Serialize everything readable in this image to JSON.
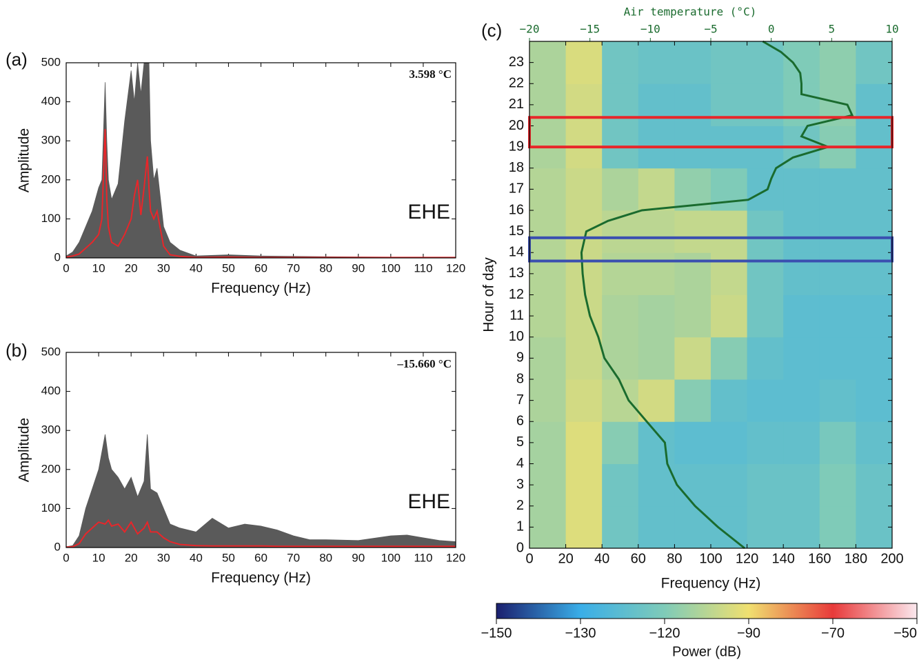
{
  "chart_data": [
    {
      "type": "line",
      "panel_label": "(a)",
      "annotation": "3.598 °C",
      "channel": "EHE",
      "xlabel": "Frequency (Hz)",
      "ylabel": "Amplitude",
      "xlim": [
        0,
        120
      ],
      "xticks": [
        0,
        10,
        20,
        30,
        40,
        50,
        60,
        70,
        80,
        90,
        100,
        110,
        120
      ],
      "ylim": [
        0,
        500
      ],
      "yticks": [
        0,
        100,
        200,
        300,
        400,
        500
      ],
      "x": [
        0,
        2,
        4,
        6,
        8,
        10,
        11,
        12,
        12.5,
        13,
        14,
        16,
        18,
        20,
        21,
        22,
        23,
        24,
        25,
        25.5,
        26,
        27,
        28,
        30,
        32,
        35,
        40,
        50,
        60,
        80,
        100,
        120
      ],
      "series": [
        {
          "color": "#5a5a5a",
          "fill": true,
          "values": [
            5,
            15,
            40,
            80,
            120,
            180,
            200,
            450,
            300,
            200,
            150,
            190,
            350,
            480,
            400,
            500,
            420,
            500,
            500,
            500,
            300,
            200,
            230,
            80,
            40,
            20,
            5,
            8,
            5,
            3,
            2,
            2
          ]
        },
        {
          "color": "#e8262a",
          "fill": false,
          "values": [
            2,
            5,
            10,
            25,
            40,
            60,
            100,
            330,
            150,
            80,
            40,
            30,
            60,
            100,
            160,
            200,
            110,
            180,
            260,
            180,
            120,
            100,
            120,
            30,
            8,
            4,
            1,
            2,
            1,
            1,
            1,
            1
          ]
        }
      ]
    },
    {
      "type": "line",
      "panel_label": "(b)",
      "annotation": "–15.660 °C",
      "channel": "EHE",
      "xlabel": "Frequency (Hz)",
      "ylabel": "Amplitude",
      "xlim": [
        0,
        120
      ],
      "xticks": [
        0,
        10,
        20,
        30,
        40,
        50,
        60,
        70,
        80,
        90,
        100,
        110,
        120
      ],
      "ylim": [
        0,
        500
      ],
      "yticks": [
        0,
        100,
        200,
        300,
        400,
        500
      ],
      "x": [
        0,
        2,
        4,
        6,
        8,
        10,
        12,
        13,
        14,
        16,
        18,
        20,
        22,
        24,
        25,
        26,
        28,
        30,
        32,
        35,
        40,
        45,
        50,
        55,
        60,
        65,
        70,
        75,
        80,
        90,
        100,
        105,
        110,
        115,
        120
      ],
      "series": [
        {
          "color": "#5a5a5a",
          "fill": true,
          "values": [
            2,
            5,
            30,
            100,
            150,
            200,
            290,
            230,
            200,
            180,
            150,
            180,
            130,
            170,
            290,
            150,
            140,
            100,
            60,
            50,
            40,
            75,
            50,
            60,
            55,
            45,
            30,
            20,
            20,
            18,
            30,
            32,
            25,
            18,
            15
          ]
        },
        {
          "color": "#e8262a",
          "fill": false,
          "values": [
            1,
            2,
            10,
            35,
            50,
            65,
            60,
            70,
            55,
            60,
            40,
            65,
            35,
            50,
            65,
            40,
            40,
            25,
            15,
            8,
            5,
            4,
            4,
            4,
            4,
            3,
            3,
            3,
            3,
            3,
            3,
            3,
            3,
            3,
            3
          ]
        }
      ]
    },
    {
      "type": "heatmap",
      "panel_label": "(c)",
      "xlabel": "Frequency (Hz)",
      "ylabel": "Hour of day",
      "x2label": "Air temperature (°C)",
      "xlim": [
        0,
        200
      ],
      "xticks": [
        0,
        20,
        40,
        60,
        80,
        100,
        120,
        140,
        160,
        180,
        200
      ],
      "ylim": [
        0,
        24
      ],
      "yticks": [
        0,
        1,
        2,
        3,
        4,
        5,
        6,
        7,
        8,
        9,
        10,
        11,
        12,
        13,
        14,
        15,
        16,
        17,
        18,
        19,
        20,
        21,
        22,
        23
      ],
      "x2lim": [
        -20,
        10
      ],
      "x2ticks": [
        {
          "value": -20,
          "label": "−20"
        },
        {
          "value": -15,
          "label": "−15"
        },
        {
          "value": -10,
          "label": "−10"
        },
        {
          "value": -5,
          "label": "−5"
        },
        0,
        5,
        10
      ],
      "x2color": "#1a6b2e",
      "x_bins": [
        0,
        20,
        40,
        60,
        80,
        100,
        120,
        140,
        160,
        180,
        200
      ],
      "y_bins": [
        0,
        2,
        4,
        6,
        8,
        10,
        12,
        14,
        16,
        18,
        20,
        22,
        24
      ],
      "values": [
        [
          -110,
          -95,
          -122,
          -124,
          -124,
          -124,
          -123,
          -123,
          -120,
          -123
        ],
        [
          -110,
          -95,
          -122,
          -124,
          -124,
          -124,
          -123,
          -123,
          -120,
          -123
        ],
        [
          -110,
          -95,
          -118,
          -124,
          -125,
          -125,
          -124,
          -124,
          -121,
          -124
        ],
        [
          -108,
          -98,
          -105,
          -98,
          -118,
          -124,
          -125,
          -125,
          -124,
          -125
        ],
        [
          -108,
          -100,
          -108,
          -110,
          -100,
          -118,
          -124,
          -125,
          -125,
          -125
        ],
        [
          -106,
          -100,
          -108,
          -110,
          -108,
          -100,
          -122,
          -125,
          -125,
          -125
        ],
        [
          -106,
          -100,
          -106,
          -106,
          -108,
          -102,
          -122,
          -124,
          -124,
          -124
        ],
        [
          -106,
          -100,
          -104,
          -104,
          -102,
          -102,
          -122,
          -124,
          -124,
          -124
        ],
        [
          -106,
          -100,
          -108,
          -102,
          -115,
          -120,
          -124,
          -124,
          -124,
          -124
        ],
        [
          -108,
          -98,
          -122,
          -124,
          -124,
          -124,
          -124,
          -122,
          -118,
          -124
        ],
        [
          -108,
          -98,
          -122,
          -124,
          -124,
          -122,
          -122,
          -120,
          -116,
          -124
        ],
        [
          -108,
          -96,
          -122,
          -123,
          -123,
          -122,
          -122,
          -120,
          -116,
          -122
        ]
      ],
      "colorbar": {
        "label": "Power (dB)",
        "ticks": [
          {
            "value": -150,
            "label": "−150"
          },
          {
            "value": -130,
            "label": "−130"
          },
          {
            "value": -120,
            "label": "−120"
          },
          {
            "value": -90,
            "label": "−90"
          },
          {
            "value": -70,
            "label": "−70"
          },
          {
            "value": -50,
            "label": "−50"
          }
        ],
        "colors": [
          "#1b1f6e",
          "#3aaee8",
          "#7fcbb8",
          "#f0e070",
          "#e83a3a",
          "#fbe8ee"
        ]
      },
      "temperature": {
        "color": "#1a6b2e",
        "hours": [
          0,
          1,
          2,
          3,
          4,
          5,
          6,
          7,
          8,
          9,
          10,
          11,
          12,
          13,
          14,
          15,
          15.5,
          16,
          16.5,
          17,
          17.5,
          18,
          18.5,
          19,
          19.5,
          20,
          20.5,
          21,
          21.5,
          22,
          22.5,
          23,
          23.5,
          24
        ],
        "values": [
          -2.2,
          -4.4,
          -6.3,
          -7.8,
          -8.6,
          -8.8,
          -10.3,
          -11.8,
          -12.6,
          -13.8,
          -14.3,
          -15.0,
          -15.4,
          -15.6,
          -15.7,
          -15.3,
          -13.5,
          -10.7,
          -1.9,
          -0.3,
          0.0,
          0.4,
          1.8,
          4.7,
          2.5,
          3.0,
          6.7,
          6.3,
          2.5,
          2.5,
          2.4,
          1.8,
          0.8,
          -0.7
        ]
      },
      "highlights": [
        {
          "hours": [
            19,
            20.4
          ],
          "color": "#e8262a"
        },
        {
          "hours": [
            13.6,
            14.7
          ],
          "color": "#3a4fb0"
        }
      ]
    }
  ]
}
